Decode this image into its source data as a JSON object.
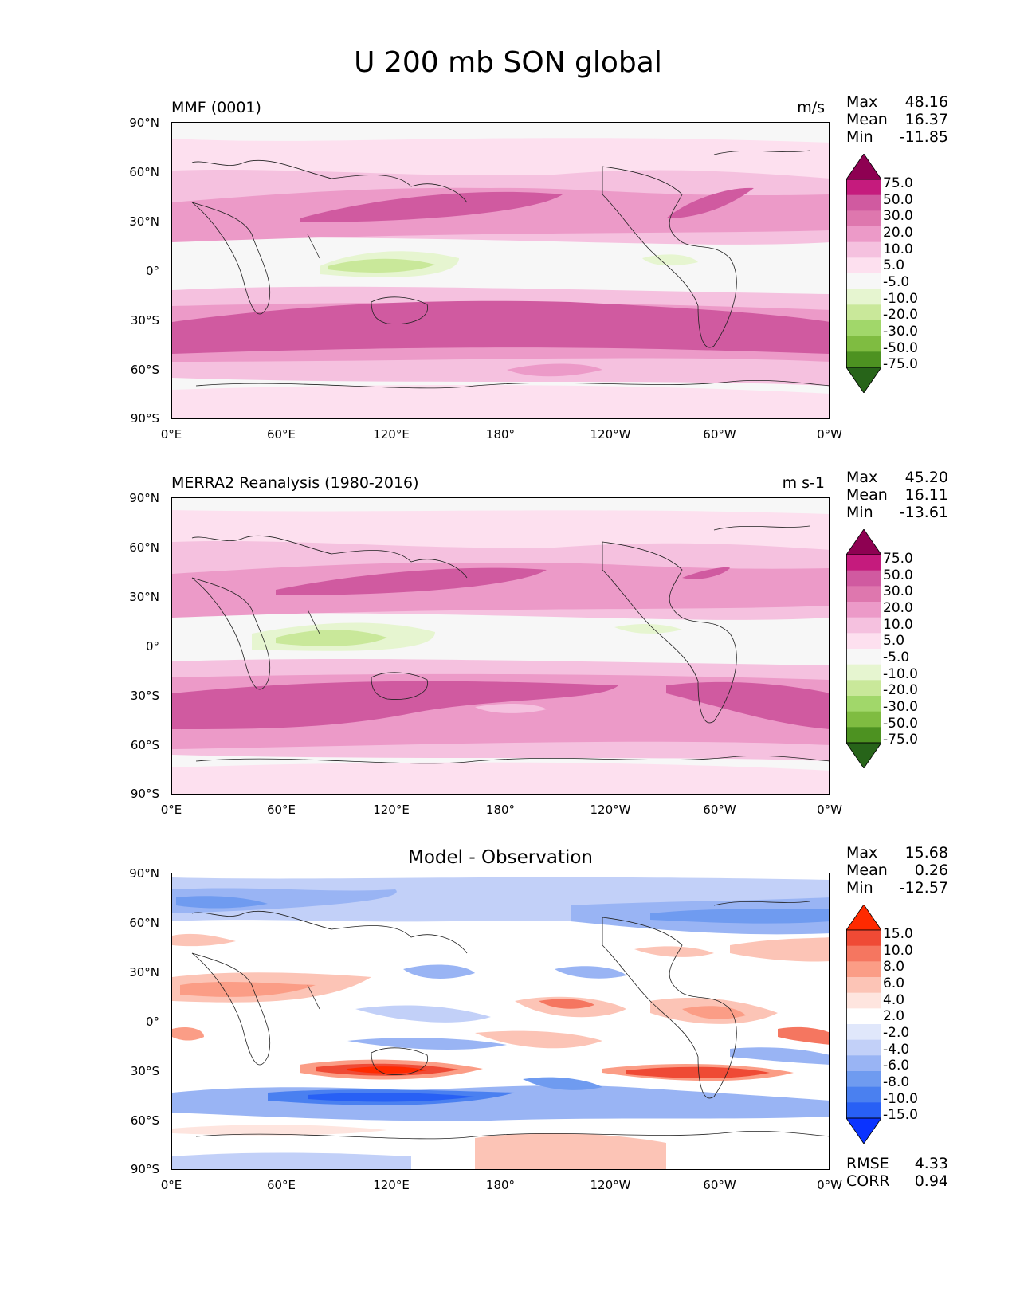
{
  "figure": {
    "title": "U 200 mb SON global"
  },
  "lat_ticks": [
    "90°N",
    "60°N",
    "30°N",
    "0°",
    "30°S",
    "60°S",
    "90°S"
  ],
  "lon_ticks": [
    "0°E",
    "60°E",
    "120°E",
    "180°",
    "120°W",
    "60°W",
    "0°W"
  ],
  "colors": {
    "pink_scale": [
      "#276419",
      "#4d9221",
      "#7fbc41",
      "#a1d76a",
      "#c9e89a",
      "#e6f5d0",
      "#f7f7f7",
      "#fde0ef",
      "#f5c1df",
      "#ec9ac8",
      "#de77ae",
      "#d05aa0",
      "#c51b7d",
      "#8e0152"
    ],
    "diff_scale": [
      "#0a33ff",
      "#2860f5",
      "#4a80f0",
      "#6f9bf0",
      "#99b4f4",
      "#c2d0f8",
      "#e0e7fb",
      "#ffffff",
      "#fee5df",
      "#fcc4b6",
      "#fb9d86",
      "#f57660",
      "#ef4a35",
      "#ff2a00"
    ]
  },
  "panels": [
    {
      "id": "mmf",
      "title": "MMF (0001)",
      "units": "m/s",
      "stats": {
        "max_label": "Max",
        "max": "48.16",
        "mean_label": "Mean",
        "mean": "16.37",
        "min_label": "Min",
        "min": "-11.85"
      },
      "colorbar_labels": [
        "75.0",
        "50.0",
        "30.0",
        "20.0",
        "10.0",
        "5.0",
        "-5.0",
        "-10.0",
        "-20.0",
        "-30.0",
        "-50.0",
        "-75.0"
      ]
    },
    {
      "id": "merra2",
      "title": "MERRA2 Reanalysis (1980-2016)",
      "units": "m s-1",
      "stats": {
        "max_label": "Max",
        "max": "45.20",
        "mean_label": "Mean",
        "mean": "16.11",
        "min_label": "Min",
        "min": "-13.61"
      },
      "colorbar_labels": [
        "75.0",
        "50.0",
        "30.0",
        "20.0",
        "10.0",
        "5.0",
        "-5.0",
        "-10.0",
        "-20.0",
        "-30.0",
        "-50.0",
        "-75.0"
      ]
    },
    {
      "id": "diff",
      "title": "Model - Observation",
      "units": "",
      "stats": {
        "max_label": "Max",
        "max": "15.68",
        "mean_label": "Mean",
        "mean": "0.26",
        "min_label": "Min",
        "min": "-12.57"
      },
      "colorbar_labels": [
        "15.0",
        "10.0",
        "8.0",
        "6.0",
        "4.0",
        "2.0",
        "-2.0",
        "-4.0",
        "-6.0",
        "-8.0",
        "-10.0",
        "-15.0"
      ],
      "fit": {
        "rmse_label": "RMSE",
        "rmse": "4.33",
        "corr_label": "CORR",
        "corr": "0.94"
      }
    }
  ]
}
